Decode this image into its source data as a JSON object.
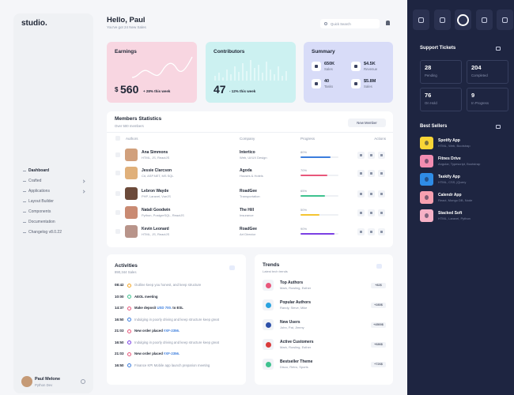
{
  "brand": "studio.",
  "nav": [
    "Dashboard",
    "Crafted",
    "Applications",
    "Layout Builder",
    "Components",
    "Documentation",
    "Changelog v8.0.22"
  ],
  "user": {
    "name": "Paul Melone",
    "role": "Python Dev"
  },
  "header": {
    "greeting": "Hello, Paul",
    "subtitle": "You've got 24 New Sales",
    "search": "Quick Search"
  },
  "earnings": {
    "title": "Earnings",
    "currency": "$",
    "amount": "560",
    "change": "+ 28% this week"
  },
  "contributors": {
    "title": "Contributors",
    "count": "47",
    "change": "- 12% this week"
  },
  "summary": {
    "title": "Summary",
    "items": [
      {
        "value": "650K",
        "label": "Sales"
      },
      {
        "value": "$4.5K",
        "label": "Revenue"
      },
      {
        "value": "40",
        "label": "Tasks"
      },
      {
        "value": "$5.8M",
        "label": "Sales"
      }
    ]
  },
  "members": {
    "title": "Members Statistics",
    "subtitle": "Over 500 members",
    "button": "New Member",
    "columns": [
      "Authors",
      "Company",
      "Progress",
      "Actions"
    ],
    "rows": [
      {
        "name": "Ana Simmons",
        "skills": "HTML, JS, ReactJS",
        "company": "Intertico",
        "field": "Web, UI/UX Design",
        "progress": "80%",
        "color": "#3b7ddd"
      },
      {
        "name": "Jessie Clarcson",
        "skills": "C#, ASP.NET, MS SQL",
        "company": "Agoda",
        "field": "Houses & Hotels",
        "progress": "70%",
        "color": "#e8577b"
      },
      {
        "name": "Lebron Wayde",
        "skills": "PHP, Laravel, VueJS",
        "company": "RoadGee",
        "field": "Transportation",
        "progress": "65%",
        "color": "#3ec28f"
      },
      {
        "name": "Natali Goodwin",
        "skills": "Python, PostgreSQL, ReactJS",
        "company": "The Hill",
        "field": "Insurance",
        "progress": "50%",
        "color": "#f4c430"
      },
      {
        "name": "Kevin Leonard",
        "skills": "HTML, JS, ReactJS",
        "company": "RoadGee",
        "field": "Art Director",
        "progress": "90%",
        "color": "#7b3fe4"
      }
    ]
  },
  "activities": {
    "title": "Activities",
    "subtitle": "890,344 Sales",
    "items": [
      {
        "time": "08:42",
        "text": "Outline keep you honest, and keep structure",
        "color": "#f5a524",
        "bold": false
      },
      {
        "time": "10:00",
        "text": "AEOL meeting",
        "color": "#3ec28f",
        "bold": true
      },
      {
        "time": "14:37",
        "text": "Make deposit",
        "link": "USD 700.",
        "rest": "to ESL",
        "color": "#e8577b",
        "bold": true
      },
      {
        "time": "16:50",
        "text": "Indulging in poorly driving and keep structure keep great",
        "color": "#3b7ddd",
        "bold": false
      },
      {
        "time": "21:03",
        "text": "New order placed",
        "link": "#XF-2356.",
        "color": "#e8577b",
        "bold": true
      },
      {
        "time": "16:50",
        "text": "Indulging in poorly driving and keep structure keep great",
        "color": "#7b3fe4",
        "bold": false
      },
      {
        "time": "21:03",
        "text": "New order placed",
        "link": "#XF-2356.",
        "color": "#e8577b",
        "bold": true
      },
      {
        "time": "16:50",
        "text": "Finance KPI Mobile app launch preparion meeting",
        "color": "#3b7ddd",
        "bold": false
      }
    ]
  },
  "trends": {
    "title": "Trends",
    "subtitle": "Latest tech trends",
    "items": [
      {
        "title": "Top Authors",
        "names": "Mark, Rowling, Esther",
        "badge": "+82$",
        "color": "#e8577b"
      },
      {
        "title": "Popular Authors",
        "names": "Randy, Steve, Mike",
        "badge": "+280$",
        "color": "#2aa3e0"
      },
      {
        "title": "New Users",
        "names": "John, Pat, Jimmy",
        "badge": "+4500$",
        "color": "#2b4fa8"
      },
      {
        "title": "Active Customers",
        "names": "Mark, Rowling, Esther",
        "badge": "+686$",
        "color": "#d93a3a"
      },
      {
        "title": "Bestseller Theme",
        "names": "Disco, Retro, Sports",
        "badge": "+726$",
        "color": "#3ec28f"
      }
    ]
  },
  "tickets": {
    "title": "Support Tickets",
    "items": [
      {
        "value": "28",
        "label": "Pending"
      },
      {
        "value": "204",
        "label": "Completed"
      },
      {
        "value": "76",
        "label": "On Hold"
      },
      {
        "value": "9",
        "label": "In Progress"
      }
    ]
  },
  "sellers": {
    "title": "Best Sellers",
    "items": [
      {
        "title": "Spotify App",
        "tags": "HTML, Web, Bootstrap",
        "color": "#f9d536"
      },
      {
        "title": "Fitnes Drive",
        "tags": "Angular, Typescript, Bootstrap",
        "color": "#f28cb1"
      },
      {
        "title": "Taskify App",
        "tags": "HTML, CSS, jQuery",
        "color": "#2f8ce6"
      },
      {
        "title": "Calendr App",
        "tags": "React, Mongo DB, Node",
        "color": "#f7a0b0"
      },
      {
        "title": "Stacked Soft",
        "tags": "HTML, Laravel, Python",
        "color": "#f6b1c6"
      }
    ]
  }
}
